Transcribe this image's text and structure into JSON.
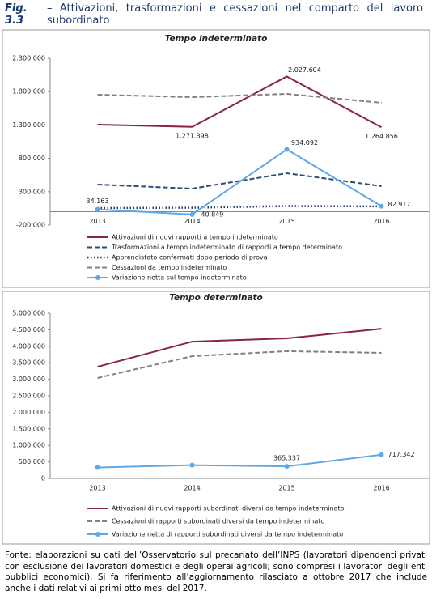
{
  "figure": {
    "label": "Fig. 3.3",
    "title": "– Attivazioni, trasformazioni e cessazioni nel comparto del lavoro subordinato"
  },
  "chart_data": [
    {
      "type": "line",
      "title": "Tempo indeterminato",
      "categories": [
        "2013",
        "2014",
        "2015",
        "2016"
      ],
      "ylim": [
        -200000,
        2300000
      ],
      "yticks": [
        {
          "value": -200000,
          "label": "-200.000"
        },
        {
          "value": 300000,
          "label": "300.000"
        },
        {
          "value": 800000,
          "label": "800.000"
        },
        {
          "value": 1300000,
          "label": "1.300.000"
        },
        {
          "value": 1800000,
          "label": "1.800.000"
        },
        {
          "value": 2300000,
          "label": "2.300.000"
        }
      ],
      "grid": false,
      "series": [
        {
          "name": "Attivazioni di nuovi rapporti a tempo indeterminato",
          "color": "#8b2346",
          "style": "solid",
          "values": [
            1305000,
            1271398,
            2027604,
            1264856
          ],
          "value_labels": [
            null,
            "1.271.398",
            "2.027.604",
            "1.264.856"
          ]
        },
        {
          "name": "Trasformazioni a tempo indeterminato di rapporti a tempo determinato",
          "color": "#2e4a7a",
          "style": "dashed",
          "values": [
            407000,
            346000,
            577000,
            383000
          ]
        },
        {
          "name": "Apprendistato confermati dopo periodo di prova",
          "color": "#1f3a6e",
          "style": "dotted",
          "values": [
            55000,
            60000,
            85000,
            80000
          ]
        },
        {
          "name": "Cessazioni da tempo indeterminato",
          "color": "#808080",
          "style": "dashed",
          "values": [
            1754000,
            1717000,
            1766000,
            1633000
          ]
        },
        {
          "name": "Variazione netta sul tempo indeterminato",
          "color": "#5fa8e6",
          "style": "solid",
          "marker": "circle",
          "values": [
            34163,
            -40849,
            934092,
            82917
          ],
          "value_labels": [
            "34.163",
            "-40.849",
            "934.092",
            "82.917"
          ]
        }
      ]
    },
    {
      "type": "line",
      "title": "Tempo determinato",
      "categories": [
        "2013",
        "2014",
        "2015",
        "2016"
      ],
      "ylim": [
        0,
        5000000
      ],
      "yticks": [
        {
          "value": 0,
          "label": "0"
        },
        {
          "value": 500000,
          "label": "500.000"
        },
        {
          "value": 1000000,
          "label": "1.000.000"
        },
        {
          "value": 1500000,
          "label": "1.500.000"
        },
        {
          "value": 2000000,
          "label": "2.000.000"
        },
        {
          "value": 2500000,
          "label": "2.500.000"
        },
        {
          "value": 3000000,
          "label": "3.000.000"
        },
        {
          "value": 3500000,
          "label": "3.500.000"
        },
        {
          "value": 4000000,
          "label": "4.000.000"
        },
        {
          "value": 4500000,
          "label": "4.500.000"
        },
        {
          "value": 5000000,
          "label": "5.000.000"
        }
      ],
      "grid": false,
      "series": [
        {
          "name": "Attivazioni di nuovi rapporti subordinati diversi da tempo indeterminato",
          "color": "#8b2346",
          "style": "solid",
          "values": [
            3380000,
            4140000,
            4240000,
            4530000
          ]
        },
        {
          "name": "Cessazioni di rapporti subordinati diversi da tempo indeterminato",
          "color": "#808080",
          "style": "dashed",
          "values": [
            3040000,
            3700000,
            3850000,
            3800000
          ]
        },
        {
          "name": "Variazione netta di rapporti subordinati diversi da tempo indeterminato",
          "color": "#5fa8e6",
          "style": "solid",
          "marker": "circle",
          "values": [
            330000,
            400000,
            365337,
            717342
          ],
          "value_labels": [
            null,
            null,
            "365.337",
            "717.342"
          ]
        }
      ]
    }
  ],
  "note": "Fonte: elaborazioni su dati dell’Osservatorio sul precariato dell’INPS (lavoratori dipendenti privati con esclusione dei lavoratori domestici e degli operai agricoli; sono compresi i lavoratori degli enti pubblici economici). Si fa riferimento all’aggiornamento rilasciato a ottobre 2017 che include anche i dati relativi ai primi otto mesi del 2017."
}
